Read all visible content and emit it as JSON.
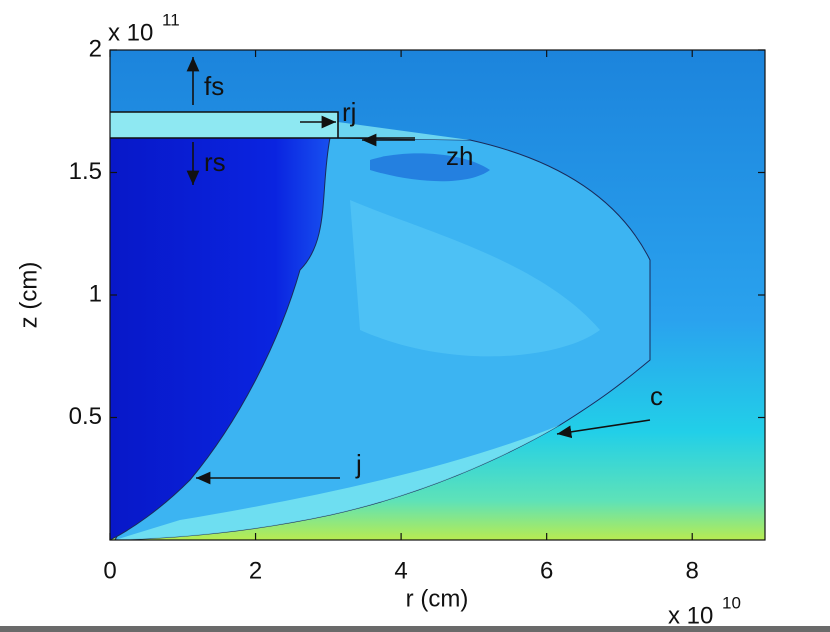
{
  "chart_data": {
    "type": "field",
    "xlabel": "r (cm)",
    "ylabel": "z (cm)",
    "xlim": [
      0,
      9
    ],
    "ylim": [
      0,
      2
    ],
    "xticks": [
      0,
      2,
      4,
      6,
      8
    ],
    "yticks": [
      0.5,
      1,
      1.5,
      2
    ],
    "x_multiplier": {
      "base": "x 10",
      "exponent": "10"
    },
    "y_multiplier": {
      "base": "x 10",
      "exponent": "11"
    },
    "annotations": [
      "fs",
      "rj",
      "rs",
      "zh",
      "c",
      "j"
    ]
  }
}
